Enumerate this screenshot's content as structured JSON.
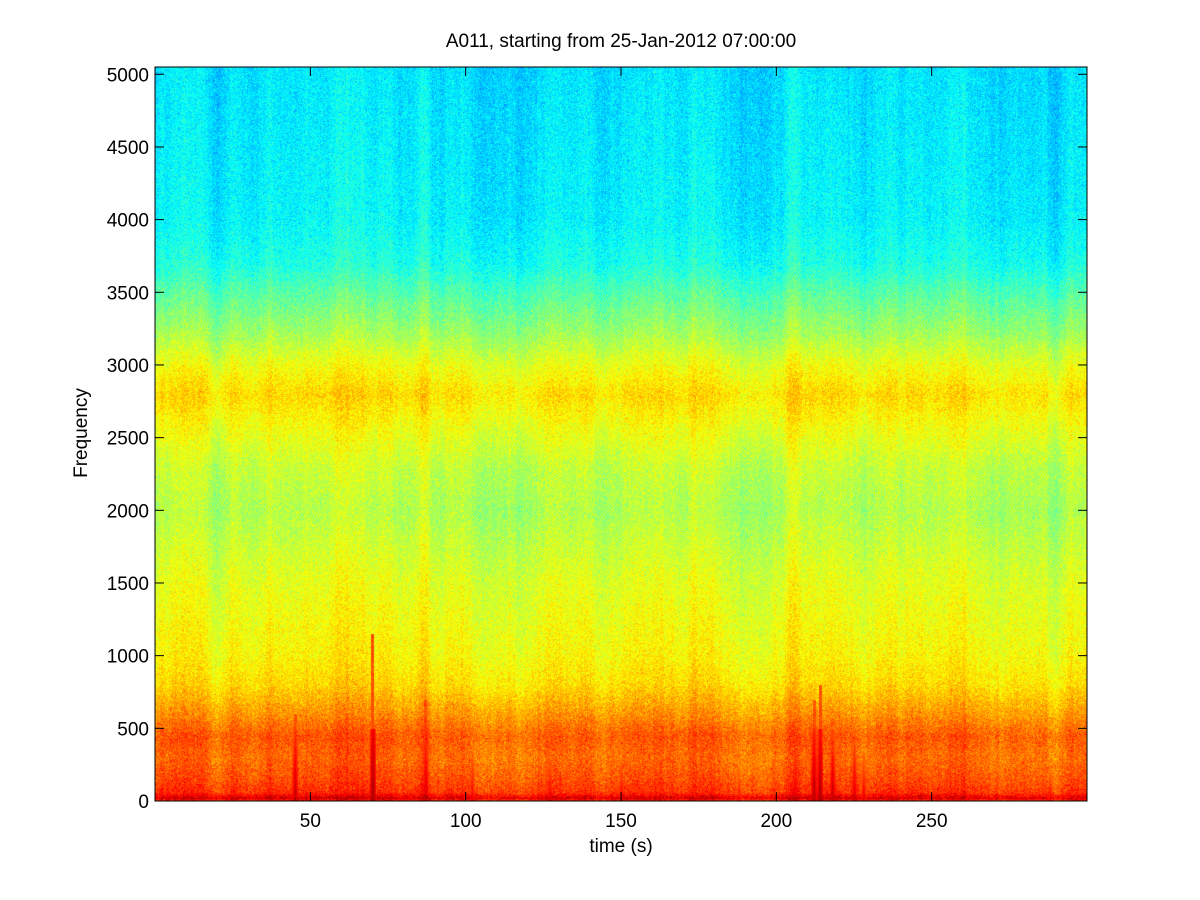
{
  "chart_data": {
    "type": "heatmap",
    "title": "A011, starting from 25-Jan-2012 07:00:00",
    "xlabel": "time (s)",
    "ylabel": "Frequency",
    "xlim": [
      0,
      300
    ],
    "ylim": [
      0,
      5050
    ],
    "x_ticks": [
      50,
      100,
      150,
      200,
      250
    ],
    "x_tick_labels": [
      "50",
      "100",
      "150",
      "200",
      "250"
    ],
    "y_ticks": [
      0,
      500,
      1000,
      1500,
      2000,
      2500,
      3000,
      3500,
      4000,
      4500,
      5000
    ],
    "y_tick_labels": [
      "0",
      "500",
      "1000",
      "1500",
      "2000",
      "2500",
      "3000",
      "3500",
      "4000",
      "4500",
      "5000"
    ],
    "grid": false,
    "colormap": "jet",
    "colors": {
      "low": "#29f0c8",
      "mid": "#9cf55a",
      "high": "#f5ee0c",
      "peak": "#e8300a",
      "axis": "#000000",
      "background": "#ffffff"
    },
    "frequency_profile": {
      "frequency": [
        0,
        20,
        60,
        150,
        300,
        450,
        600,
        800,
        1000,
        1500,
        2000,
        2300,
        2600,
        2800,
        3000,
        3200,
        3500,
        3700,
        4000,
        4500,
        5050
      ],
      "level": [
        0.78,
        0.92,
        0.83,
        0.8,
        0.77,
        0.79,
        0.73,
        0.66,
        0.63,
        0.6,
        0.55,
        0.57,
        0.62,
        0.66,
        0.61,
        0.54,
        0.46,
        0.4,
        0.37,
        0.36,
        0.35
      ]
    },
    "transient_events": [
      {
        "time": 4,
        "max_frequency": 200,
        "level": 0.92
      },
      {
        "time": 25,
        "max_frequency": 220,
        "level": 0.88
      },
      {
        "time": 45,
        "max_frequency": 600,
        "level": 0.95
      },
      {
        "time": 65,
        "max_frequency": 300,
        "level": 0.9
      },
      {
        "time": 70,
        "max_frequency": 1150,
        "level": 0.97
      },
      {
        "time": 87,
        "max_frequency": 700,
        "level": 0.93
      },
      {
        "time": 102,
        "max_frequency": 350,
        "level": 0.9
      },
      {
        "time": 127,
        "max_frequency": 280,
        "level": 0.92
      },
      {
        "time": 138,
        "max_frequency": 230,
        "level": 0.88
      },
      {
        "time": 150,
        "max_frequency": 300,
        "level": 0.9
      },
      {
        "time": 172,
        "max_frequency": 150,
        "level": 0.85
      },
      {
        "time": 188,
        "max_frequency": 250,
        "level": 0.88
      },
      {
        "time": 206,
        "max_frequency": 400,
        "level": 0.92
      },
      {
        "time": 212,
        "max_frequency": 700,
        "level": 0.96
      },
      {
        "time": 214,
        "max_frequency": 800,
        "level": 0.97
      },
      {
        "time": 218,
        "max_frequency": 500,
        "level": 0.95
      },
      {
        "time": 225,
        "max_frequency": 450,
        "level": 0.93
      },
      {
        "time": 228,
        "max_frequency": 350,
        "level": 0.91
      },
      {
        "time": 257,
        "max_frequency": 180,
        "level": 0.87
      },
      {
        "time": 288,
        "max_frequency": 220,
        "level": 0.9
      },
      {
        "time": 297,
        "max_frequency": 250,
        "level": 0.88
      }
    ]
  }
}
